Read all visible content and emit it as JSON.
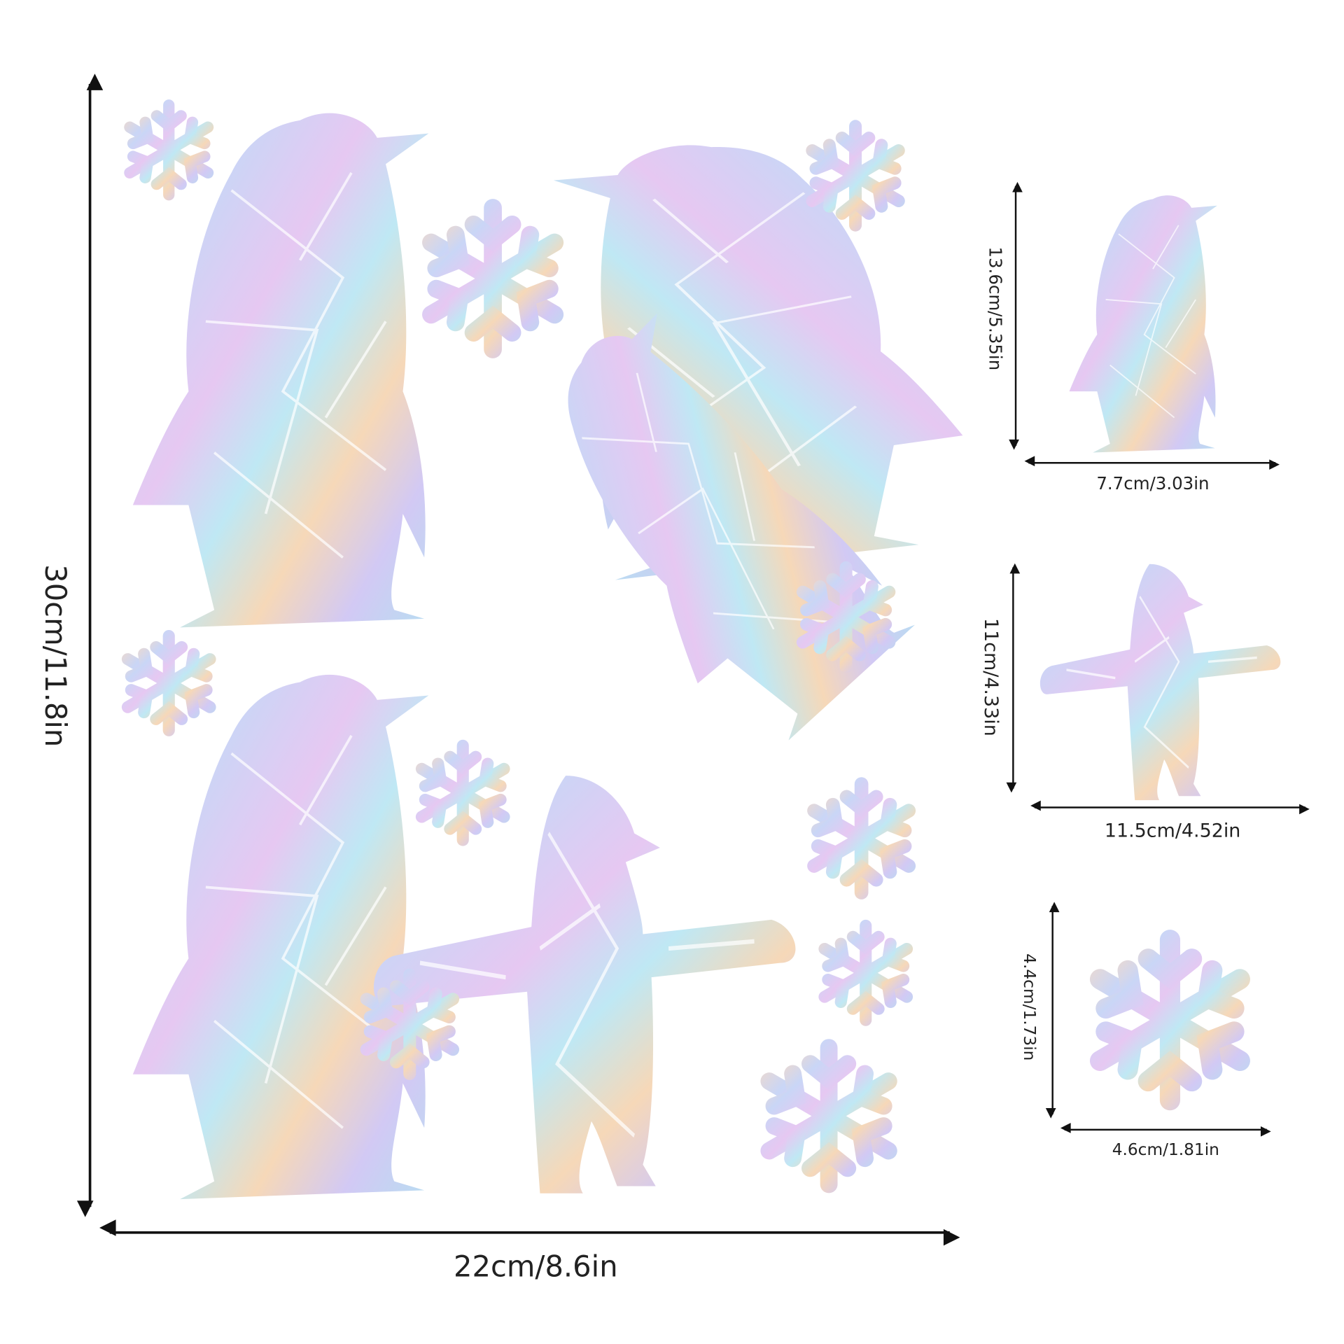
{
  "main_sheet": {
    "height": "30cm/11.8in",
    "width": "22cm/8.6in"
  },
  "details": [
    {
      "height": "13.6cm/5.35in",
      "width": "7.7cm/3.03in"
    },
    {
      "height": "11cm/4.33in",
      "width": "11.5cm/4.52in"
    },
    {
      "height": "4.4cm/1.73in",
      "width": "4.6cm/1.81in"
    }
  ]
}
